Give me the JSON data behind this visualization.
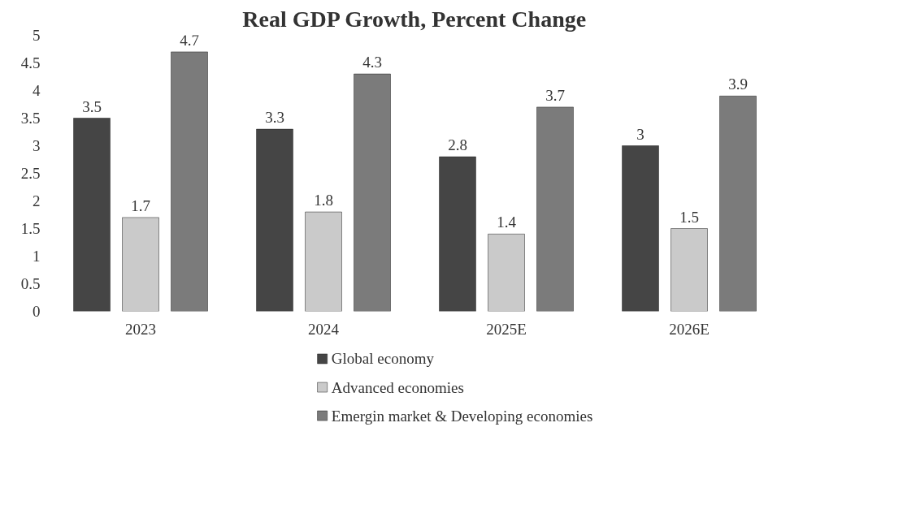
{
  "chart_data": {
    "type": "bar",
    "title": "Real GDP Growth, Percent Change",
    "categories": [
      "2023",
      "2024",
      "2025E",
      "2026E"
    ],
    "series": [
      {
        "name": "Global economy",
        "color": "#454545",
        "values": [
          3.5,
          3.3,
          2.8,
          3
        ]
      },
      {
        "name": "Advanced economies",
        "color": "#cacaca",
        "values": [
          1.7,
          1.8,
          1.4,
          1.5
        ]
      },
      {
        "name": "Emergin market & Developing economies",
        "color": "#7b7b7b",
        "values": [
          4.7,
          4.3,
          3.7,
          3.9
        ]
      }
    ],
    "ylim": [
      0,
      5
    ],
    "yticks": [
      0,
      0.5,
      1,
      1.5,
      2,
      2.5,
      3,
      3.5,
      4,
      4.5,
      5
    ],
    "data_labels": true,
    "grid": false,
    "legend": "bottom"
  }
}
